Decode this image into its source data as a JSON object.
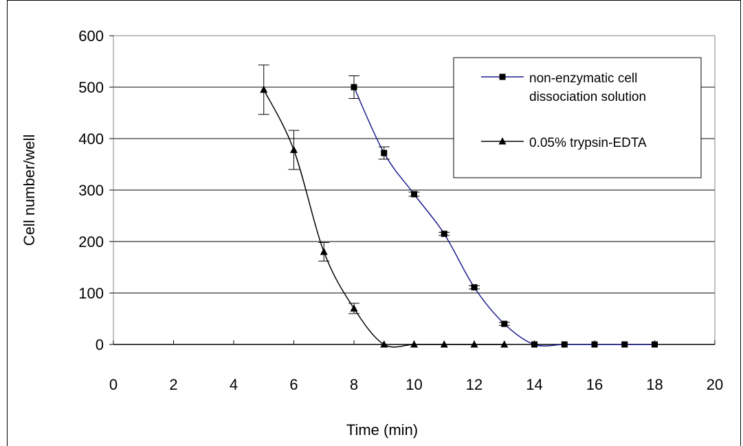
{
  "chart_data": {
    "type": "line",
    "xlabel": "Time (min)",
    "ylabel": "Cell number/well",
    "xlim": [
      0,
      20
    ],
    "ylim": [
      0,
      600
    ],
    "x_ticks": [
      0,
      2,
      4,
      6,
      8,
      10,
      12,
      14,
      16,
      18,
      20
    ],
    "y_ticks": [
      0,
      100,
      200,
      300,
      400,
      500,
      600
    ],
    "grid": "horizontal",
    "legend_position": "top-right",
    "series": [
      {
        "name": "non-enzymatic cell dissociation solution",
        "color": "#1a1a8c",
        "marker": "square",
        "points": [
          {
            "x": 8,
            "y": 500,
            "err": 22
          },
          {
            "x": 9,
            "y": 372,
            "err": 12
          },
          {
            "x": 10,
            "y": 292,
            "err": 4
          },
          {
            "x": 11,
            "y": 215,
            "err": 3
          },
          {
            "x": 12,
            "y": 111,
            "err": 3
          },
          {
            "x": 13,
            "y": 40,
            "err": 3
          },
          {
            "x": 14,
            "y": 0,
            "err": 0
          },
          {
            "x": 15,
            "y": 0,
            "err": 0
          },
          {
            "x": 16,
            "y": 0,
            "err": 0
          },
          {
            "x": 17,
            "y": 0,
            "err": 0
          },
          {
            "x": 18,
            "y": 0,
            "err": 0
          }
        ]
      },
      {
        "name": "0.05% trypsin-EDTA",
        "color": "#000000",
        "marker": "triangle",
        "points": [
          {
            "x": 5,
            "y": 495,
            "err": 48
          },
          {
            "x": 6,
            "y": 378,
            "err": 38
          },
          {
            "x": 7,
            "y": 180,
            "err": 18
          },
          {
            "x": 8,
            "y": 70,
            "err": 10
          },
          {
            "x": 9,
            "y": 0,
            "err": 0
          },
          {
            "x": 10,
            "y": 0,
            "err": 0
          },
          {
            "x": 11,
            "y": 0,
            "err": 0
          },
          {
            "x": 12,
            "y": 0,
            "err": 0
          },
          {
            "x": 13,
            "y": 0,
            "err": 0
          }
        ]
      }
    ]
  }
}
